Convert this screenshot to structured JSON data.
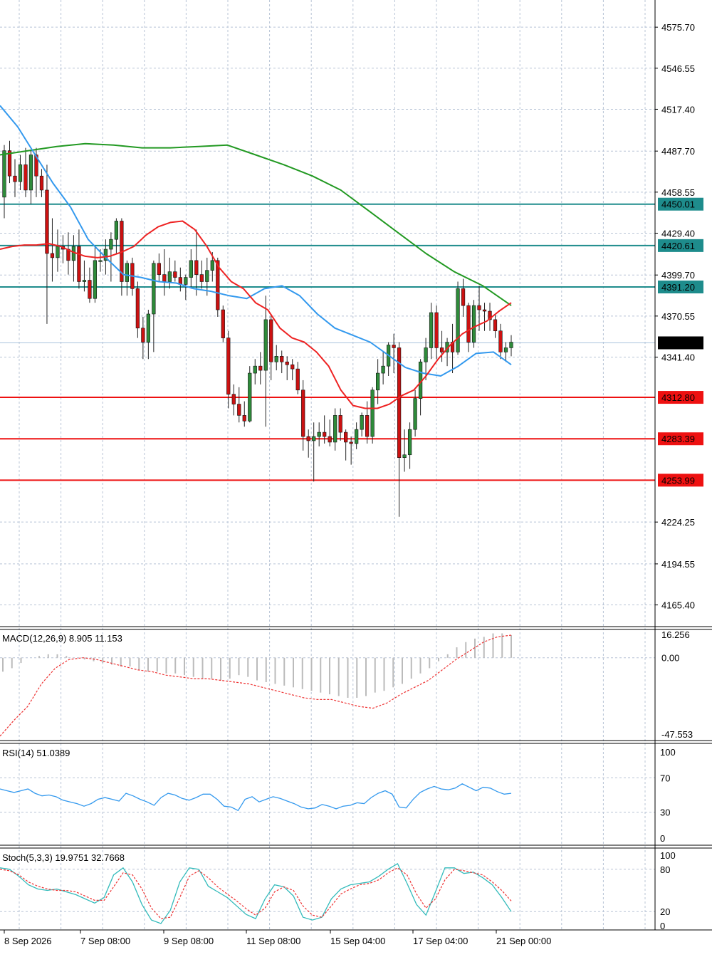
{
  "chart_data": [
    {
      "type": "candlestick",
      "panel": "price",
      "price_scale_ticks": [
        "4575.70",
        "4546.55",
        "4517.40",
        "4487.70",
        "4458.55",
        "4429.40",
        "4399.70",
        "4370.55",
        "4341.40",
        "4224.25",
        "4194.55",
        "4165.40"
      ],
      "ylim": [
        4150,
        4595
      ],
      "current_price": "4351.52",
      "support_levels": [
        "4312.80",
        "4283.39",
        "4253.99"
      ],
      "resistance_levels": [
        "4450.01",
        "4420.61",
        "4391.20"
      ],
      "colors": {
        "up": "#2e8b3a",
        "down": "#cc1111",
        "support": "#ee1111",
        "resistance": "#1e8c8c",
        "ma_fast": "#ee2222",
        "ma_mid": "#3399ee",
        "ma_slow": "#229922",
        "grid": "#b8c4d6"
      },
      "ohlc": [
        [
          4455,
          4492,
          4440,
          4488
        ],
        [
          4488,
          4495,
          4465,
          4470
        ],
        [
          4470,
          4482,
          4455,
          4466
        ],
        [
          4466,
          4485,
          4460,
          4478
        ],
        [
          4478,
          4490,
          4455,
          4460
        ],
        [
          4460,
          4488,
          4450,
          4485
        ],
        [
          4485,
          4490,
          4455,
          4470
        ],
        [
          4470,
          4475,
          4455,
          4460
        ],
        [
          4460,
          4478,
          4365,
          4415
        ],
        [
          4415,
          4440,
          4395,
          4412
        ],
        [
          4412,
          4432,
          4402,
          4420
        ],
        [
          4420,
          4428,
          4408,
          4418
        ],
        [
          4418,
          4430,
          4400,
          4410
        ],
        [
          4410,
          4428,
          4395,
          4420
        ],
        [
          4420,
          4432,
          4390,
          4395
        ],
        [
          4395,
          4410,
          4388,
          4396
        ],
        [
          4396,
          4405,
          4380,
          4383
        ],
        [
          4383,
          4420,
          4380,
          4410
        ],
        [
          4410,
          4418,
          4402,
          4410
        ],
        [
          4410,
          4425,
          4400,
          4418
        ],
        [
          4418,
          4430,
          4395,
          4425
        ],
        [
          4425,
          4440,
          4415,
          4438
        ],
        [
          4438,
          4440,
          4385,
          4395
        ],
        [
          4395,
          4410,
          4385,
          4408
        ],
        [
          4408,
          4412,
          4385,
          4390
        ],
        [
          4390,
          4395,
          4355,
          4362
        ],
        [
          4362,
          4370,
          4340,
          4352
        ],
        [
          4352,
          4375,
          4340,
          4372
        ],
        [
          4372,
          4410,
          4345,
          4408
        ],
        [
          4408,
          4415,
          4395,
          4400
        ],
        [
          4400,
          4418,
          4385,
          4395
        ],
        [
          4395,
          4412,
          4390,
          4402
        ],
        [
          4402,
          4410,
          4395,
          4398
        ],
        [
          4398,
          4405,
          4388,
          4393
        ],
        [
          4393,
          4400,
          4382,
          4398
        ],
        [
          4398,
          4418,
          4390,
          4410
        ],
        [
          4410,
          4432,
          4385,
          4400
        ],
        [
          4400,
          4410,
          4390,
          4395
        ],
        [
          4395,
          4412,
          4385,
          4403
        ],
        [
          4403,
          4416,
          4395,
          4410
        ],
        [
          4410,
          4412,
          4370,
          4375
        ],
        [
          4375,
          4378,
          4352,
          4355
        ],
        [
          4355,
          4360,
          4305,
          4315
        ],
        [
          4315,
          4322,
          4300,
          4308
        ],
        [
          4308,
          4320,
          4295,
          4300
        ],
        [
          4300,
          4310,
          4292,
          4296
        ],
        [
          4296,
          4335,
          4295,
          4330
        ],
        [
          4330,
          4340,
          4322,
          4335
        ],
        [
          4335,
          4345,
          4322,
          4332
        ],
        [
          4332,
          4385,
          4292,
          4368
        ],
        [
          4368,
          4372,
          4325,
          4338
        ],
        [
          4338,
          4350,
          4332,
          4342
        ],
        [
          4342,
          4346,
          4330,
          4338
        ],
        [
          4338,
          4342,
          4325,
          4336
        ],
        [
          4336,
          4340,
          4325,
          4333
        ],
        [
          4333,
          4338,
          4315,
          4318
        ],
        [
          4318,
          4325,
          4275,
          4285
        ],
        [
          4285,
          4290,
          4270,
          4282
        ],
        [
          4282,
          4295,
          4253,
          4285
        ],
        [
          4285,
          4295,
          4278,
          4288
        ],
        [
          4288,
          4300,
          4280,
          4285
        ],
        [
          4285,
          4297,
          4278,
          4281
        ],
        [
          4281,
          4305,
          4275,
          4300
        ],
        [
          4300,
          4305,
          4282,
          4288
        ],
        [
          4288,
          4290,
          4268,
          4281
        ],
        [
          4281,
          4285,
          4265,
          4280
        ],
        [
          4280,
          4295,
          4276,
          4290
        ],
        [
          4290,
          4302,
          4285,
          4300
        ],
        [
          4300,
          4310,
          4280,
          4285
        ],
        [
          4285,
          4320,
          4280,
          4318
        ],
        [
          4318,
          4340,
          4308,
          4330
        ],
        [
          4330,
          4345,
          4322,
          4335
        ],
        [
          4335,
          4352,
          4328,
          4350
        ],
        [
          4350,
          4358,
          4330,
          4348
        ],
        [
          4348,
          4352,
          4228,
          4270
        ],
        [
          4270,
          4290,
          4260,
          4272
        ],
        [
          4272,
          4295,
          4262,
          4290
        ],
        [
          4290,
          4318,
          4285,
          4312
        ],
        [
          4312,
          4340,
          4300,
          4338
        ],
        [
          4338,
          4355,
          4325,
          4348
        ],
        [
          4348,
          4380,
          4340,
          4373
        ],
        [
          4373,
          4378,
          4340,
          4348
        ],
        [
          4348,
          4360,
          4338,
          4345
        ],
        [
          4345,
          4355,
          4335,
          4352
        ],
        [
          4352,
          4365,
          4330,
          4345
        ],
        [
          4345,
          4395,
          4343,
          4390
        ],
        [
          4390,
          4397,
          4370,
          4378
        ],
        [
          4378,
          4380,
          4345,
          4352
        ],
        [
          4352,
          4382,
          4348,
          4378
        ],
        [
          4378,
          4392,
          4360,
          4375
        ],
        [
          4375,
          4380,
          4360,
          4374
        ],
        [
          4374,
          4380,
          4360,
          4368
        ],
        [
          4368,
          4372,
          4355,
          4360
        ],
        [
          4360,
          4365,
          4340,
          4345
        ],
        [
          4345,
          4352,
          4338,
          4348
        ],
        [
          4348,
          4357,
          4342,
          4352
        ]
      ],
      "ma_fast": [
        4418,
        4420,
        4421,
        4421,
        4422,
        4420,
        4416,
        4413,
        4412,
        4413,
        4416,
        4420,
        4428,
        4434,
        4437,
        4438,
        4432,
        4420,
        4405,
        4395,
        4390,
        4380,
        4375,
        4362,
        4355,
        4352,
        4345,
        4335,
        4318,
        4307,
        4305,
        4305,
        4308,
        4314,
        4318,
        4328,
        4340,
        4350,
        4358,
        4363,
        4367,
        4374,
        4380
      ],
      "ma_mid": [
        4520,
        4505,
        4485,
        4465,
        4448,
        4425,
        4412,
        4400,
        4398,
        4395,
        4394,
        4390,
        4388,
        4385,
        4383,
        4390,
        4392,
        4385,
        4372,
        4362,
        4357,
        4352,
        4343,
        4334,
        4330,
        4328,
        4335,
        4344,
        4345,
        4336
      ],
      "ma_slow": [
        4485,
        4488,
        4491,
        4493,
        4492,
        4490,
        4490,
        4491,
        4492,
        4485,
        4478,
        4470,
        4460,
        4445,
        4430,
        4415,
        4402,
        4392,
        4378
      ],
      "x_ticks": [
        "8 Sep 2026",
        "7 Sep 08:00",
        "9 Sep 08:00",
        "11 Sep 08:00",
        "15 Sep 04:00",
        "17 Sep 04:00",
        "21 Sep 00:00"
      ]
    },
    {
      "type": "bar",
      "panel": "macd",
      "title": "MACD(12,26,9) 8.905 11.153",
      "scale_ticks": [
        "16.256",
        "0.00",
        "-47.553"
      ],
      "ylim": [
        -47.553,
        16.256
      ],
      "histogram": [
        -8,
        -6,
        -3,
        0,
        1,
        2,
        2,
        1,
        0,
        -1,
        -2,
        -3,
        -4,
        -5,
        -5,
        -7,
        -8,
        -8,
        -9,
        -9,
        -10,
        -11,
        -12,
        -12,
        -13,
        -12,
        -10,
        -11,
        -13,
        -14,
        -15,
        -16,
        -17,
        -18,
        -19,
        -20,
        -21,
        -22,
        -23,
        -23,
        -22,
        -20,
        -19,
        -17,
        -15,
        -12,
        -9,
        -6,
        -2,
        2,
        6,
        9,
        11,
        12,
        14,
        14,
        13
      ],
      "signal": [
        -45,
        -36,
        -28,
        -15,
        -6,
        -1,
        0,
        -1,
        -3,
        -5,
        -7,
        -8,
        -10,
        -11,
        -12,
        -12,
        -13,
        -14,
        -15,
        -17,
        -19,
        -21,
        -23,
        -24,
        -24,
        -26,
        -28,
        -29,
        -26,
        -21,
        -17,
        -13,
        -7,
        -1,
        4,
        9,
        12,
        13
      ]
    },
    {
      "type": "line",
      "panel": "rsi",
      "title": "RSI(14) 51.0389",
      "scale_ticks": [
        "100",
        "70",
        "30",
        "0"
      ],
      "ylim": [
        0,
        100
      ],
      "values": [
        57,
        55,
        53,
        55,
        57,
        52,
        49,
        50,
        48,
        44,
        42,
        40,
        37,
        40,
        45,
        47,
        45,
        43,
        52,
        49,
        45,
        42,
        38,
        47,
        52,
        50,
        46,
        44,
        47,
        51,
        51,
        45,
        37,
        36,
        32,
        45,
        48,
        42,
        45,
        48,
        46,
        43,
        40,
        36,
        34,
        35,
        39,
        37,
        34,
        37,
        38,
        41,
        40,
        47,
        52,
        55,
        51,
        36,
        35,
        45,
        53,
        57,
        60,
        57,
        56,
        58,
        63,
        59,
        55,
        59,
        58,
        54,
        51,
        52
      ]
    },
    {
      "type": "line",
      "panel": "stoch",
      "title": "Stoch(5,3,3) 19.9751 32.7668",
      "scale_ticks": [
        "100",
        "80",
        "20",
        "0"
      ],
      "ylim": [
        0,
        100
      ],
      "k": [
        82,
        80,
        70,
        58,
        52,
        50,
        52,
        48,
        44,
        38,
        32,
        40,
        72,
        82,
        62,
        30,
        8,
        3,
        22,
        62,
        82,
        80,
        56,
        48,
        40,
        28,
        16,
        10,
        38,
        58,
        55,
        42,
        12,
        8,
        12,
        38,
        52,
        58,
        60,
        62,
        70,
        80,
        88,
        60,
        30,
        15,
        48,
        82,
        82,
        74,
        76,
        68,
        58,
        40,
        20
      ],
      "d": [
        80,
        78,
        72,
        62,
        56,
        52,
        50,
        50,
        48,
        42,
        36,
        36,
        55,
        75,
        72,
        52,
        25,
        10,
        12,
        40,
        70,
        78,
        68,
        55,
        45,
        35,
        24,
        15,
        25,
        48,
        55,
        50,
        28,
        15,
        12,
        28,
        45,
        52,
        58,
        60,
        65,
        75,
        82,
        72,
        45,
        25,
        38,
        65,
        80,
        78,
        75,
        72,
        62,
        50,
        35
      ]
    }
  ]
}
